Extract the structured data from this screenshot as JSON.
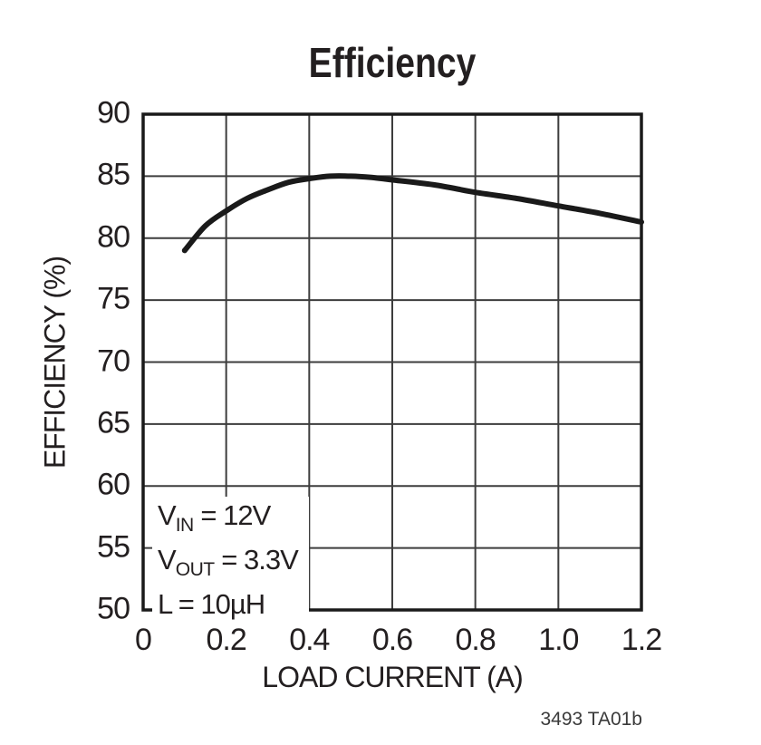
{
  "title": "Efficiency",
  "footnote": "3493 TA01b",
  "chart_data": {
    "type": "line",
    "title": "Efficiency",
    "xlabel": "LOAD CURRENT (A)",
    "ylabel": "EFFICIENCY (%)",
    "xlim": [
      0,
      1.2
    ],
    "ylim": [
      50,
      90
    ],
    "grid": true,
    "legend": "none",
    "x_ticks": [
      0,
      0.2,
      0.4,
      0.6,
      0.8,
      1.0,
      1.2
    ],
    "x_tick_labels": [
      "0",
      "0.2",
      "0.4",
      "0.6",
      "0.8",
      "1.0",
      "1.2"
    ],
    "y_ticks": [
      50,
      55,
      60,
      65,
      70,
      75,
      80,
      85,
      90
    ],
    "y_tick_labels": [
      "50",
      "55",
      "60",
      "65",
      "70",
      "75",
      "80",
      "85",
      "90"
    ],
    "series": [
      {
        "name": "efficiency",
        "x": [
          0.1,
          0.15,
          0.2,
          0.25,
          0.3,
          0.35,
          0.4,
          0.45,
          0.5,
          0.55,
          0.6,
          0.7,
          0.8,
          0.9,
          1.0,
          1.1,
          1.2
        ],
        "y": [
          79.0,
          81.0,
          82.2,
          83.2,
          83.9,
          84.5,
          84.8,
          85.0,
          85.0,
          84.9,
          84.7,
          84.3,
          83.7,
          83.2,
          82.6,
          82.0,
          81.3
        ]
      }
    ],
    "annotation_lines": [
      {
        "parts": [
          {
            "t": "V"
          },
          {
            "t": "IN",
            "sub": true
          },
          {
            "t": " = 12V"
          }
        ]
      },
      {
        "parts": [
          {
            "t": "V"
          },
          {
            "t": "OUT",
            "sub": true
          },
          {
            "t": " = 3.3V"
          }
        ]
      },
      {
        "parts": [
          {
            "t": "L = 10µH"
          }
        ]
      }
    ],
    "colors": {
      "line": "#1a1a1a",
      "grid": "#3d3d3d",
      "frame": "#1a1a1a",
      "text": "#231f20"
    }
  }
}
